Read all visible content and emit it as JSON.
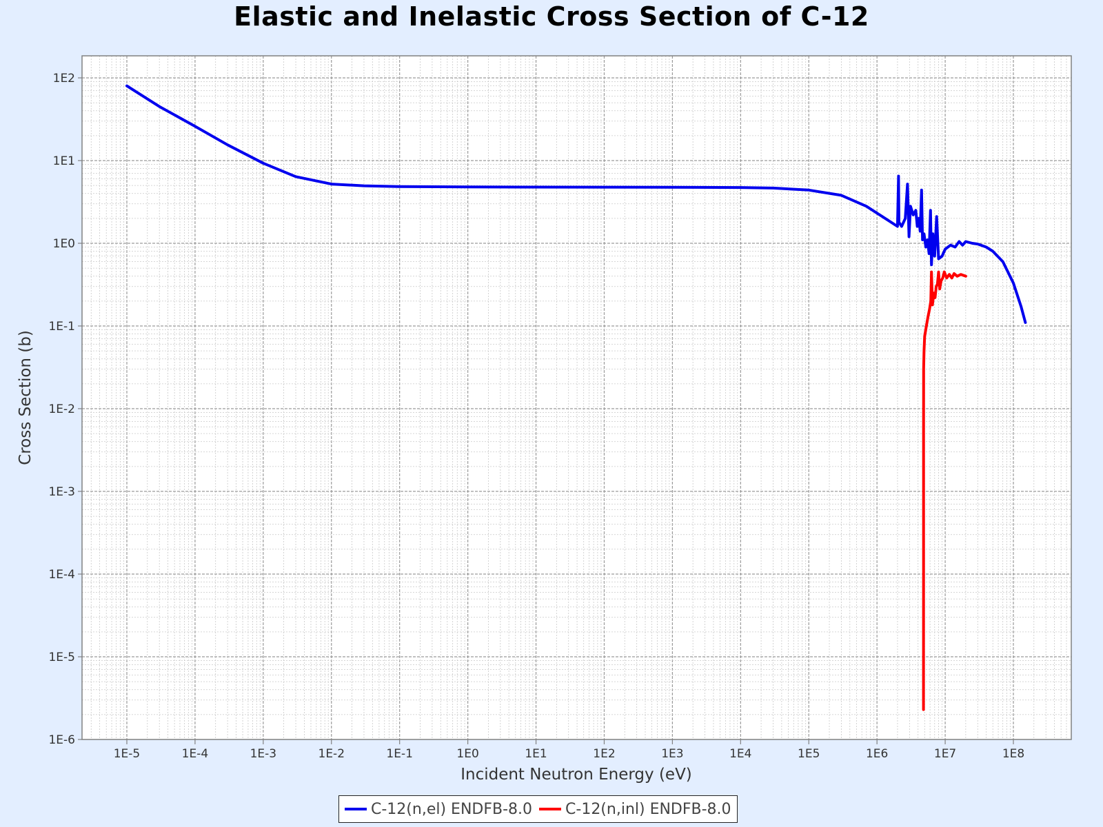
{
  "chart_data": {
    "type": "line",
    "title": "Elastic and Inelastic Cross Section of C-12",
    "xlabel": "Incident Neutron Energy (eV)",
    "ylabel": "Cross Section (b)",
    "x_scale": "log",
    "y_scale": "log",
    "xlim": [
      3.5e-06,
      1000000000.0
    ],
    "ylim": [
      1e-06,
      200
    ],
    "x_ticks": [
      "1E-5",
      "1E-4",
      "1E-3",
      "1E-2",
      "1E-1",
      "1E0",
      "1E1",
      "1E2",
      "1E3",
      "1E4",
      "1E5",
      "1E6",
      "1E7",
      "1E8"
    ],
    "y_ticks": [
      "1E-6",
      "1E-5",
      "1E-4",
      "1E-3",
      "1E-2",
      "1E-1",
      "1E0",
      "1E1",
      "1E2"
    ],
    "grid": true,
    "legend_position": "bottom-center",
    "series": [
      {
        "name": "C-12(n,el) ENDFB-8.0",
        "color": "#0000ee",
        "points": [
          [
            1e-05,
            80
          ],
          [
            3e-05,
            45
          ],
          [
            0.0001,
            26
          ],
          [
            0.0003,
            15.5
          ],
          [
            0.001,
            9.3
          ],
          [
            0.003,
            6.4
          ],
          [
            0.01,
            5.2
          ],
          [
            0.03,
            4.95
          ],
          [
            0.1,
            4.85
          ],
          [
            1,
            4.8
          ],
          [
            10,
            4.78
          ],
          [
            100,
            4.77
          ],
          [
            1000,
            4.75
          ],
          [
            10000,
            4.72
          ],
          [
            30000,
            4.65
          ],
          [
            100000,
            4.4
          ],
          [
            300000,
            3.8
          ],
          [
            700000,
            2.8
          ],
          [
            1200000,
            2.1
          ],
          [
            2000000,
            1.6
          ],
          [
            2070000,
            6.5
          ],
          [
            2100000,
            1.8
          ],
          [
            2300000,
            1.6
          ],
          [
            2600000,
            2.0
          ],
          [
            2800000,
            5.2
          ],
          [
            2950000,
            1.2
          ],
          [
            3100000,
            2.8
          ],
          [
            3400000,
            2.2
          ],
          [
            3700000,
            2.5
          ],
          [
            3900000,
            1.6
          ],
          [
            4100000,
            2.0
          ],
          [
            4300000,
            1.4
          ],
          [
            4500000,
            4.4
          ],
          [
            4650000,
            1.1
          ],
          [
            4900000,
            1.3
          ],
          [
            5200000,
            0.9
          ],
          [
            5500000,
            1.1
          ],
          [
            5800000,
            0.75
          ],
          [
            6100000,
            2.5
          ],
          [
            6300000,
            0.55
          ],
          [
            6600000,
            1.3
          ],
          [
            7000000,
            0.7
          ],
          [
            7500000,
            2.1
          ],
          [
            8000000,
            0.65
          ],
          [
            9000000,
            0.7
          ],
          [
            10000000,
            0.85
          ],
          [
            12000000,
            0.95
          ],
          [
            14000000,
            0.9
          ],
          [
            16000000,
            1.05
          ],
          [
            18000000,
            0.95
          ],
          [
            20000000,
            1.05
          ],
          [
            25000000,
            1.0
          ],
          [
            30000000,
            0.98
          ],
          [
            40000000,
            0.9
          ],
          [
            50000000,
            0.8
          ],
          [
            70000000,
            0.6
          ],
          [
            100000000,
            0.33
          ],
          [
            130000000,
            0.17
          ],
          [
            150000000,
            0.11
          ]
        ]
      },
      {
        "name": "C-12(n,inl) ENDFB-8.0",
        "color": "#ff0000",
        "points": [
          [
            4810000,
            2.3e-06
          ],
          [
            4815000,
            0.0001
          ],
          [
            4820000,
            0.005
          ],
          [
            4830000,
            0.03
          ],
          [
            4900000,
            0.05
          ],
          [
            5000000,
            0.075
          ],
          [
            5300000,
            0.1
          ],
          [
            5600000,
            0.13
          ],
          [
            5900000,
            0.16
          ],
          [
            6150000,
            0.2
          ],
          [
            6300000,
            0.45
          ],
          [
            6500000,
            0.18
          ],
          [
            6800000,
            0.25
          ],
          [
            7100000,
            0.22
          ],
          [
            7400000,
            0.3
          ],
          [
            7700000,
            0.32
          ],
          [
            8000000,
            0.45
          ],
          [
            8300000,
            0.28
          ],
          [
            8700000,
            0.35
          ],
          [
            9200000,
            0.38
          ],
          [
            9700000,
            0.45
          ],
          [
            10500000,
            0.38
          ],
          [
            11500000,
            0.42
          ],
          [
            12500000,
            0.38
          ],
          [
            13500000,
            0.43
          ],
          [
            15000000,
            0.4
          ],
          [
            17000000,
            0.42
          ],
          [
            20000000,
            0.4
          ]
        ]
      }
    ]
  }
}
